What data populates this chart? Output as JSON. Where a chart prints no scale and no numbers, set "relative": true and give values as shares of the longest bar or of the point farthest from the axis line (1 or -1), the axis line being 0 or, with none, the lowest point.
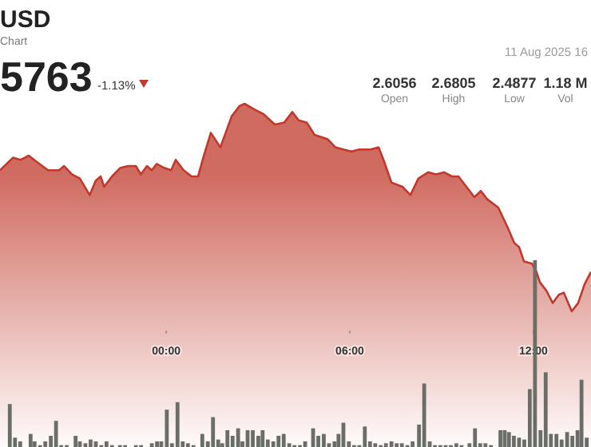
{
  "chart_data": [
    {
      "type": "area",
      "relative": true,
      "title": "USD",
      "subtitle": "Chart",
      "annotations": [
        "5763",
        "-1.13%",
        "11 Aug 2025 16",
        "2.6056",
        "Open",
        "2.6805",
        "High",
        "2.4877",
        "Low",
        "1.18 M",
        "Vol"
      ],
      "color": "#c0392b",
      "x": [
        -5.43,
        -5.01,
        -4.75,
        -4.49,
        -4.23,
        -3.86,
        -3.5,
        -3.34,
        -3.08,
        -2.82,
        -2.5,
        -2.3,
        -2.14,
        -2.03,
        -1.77,
        -1.51,
        -1.25,
        -0.99,
        -0.83,
        -0.63,
        -0.47,
        -0.31,
        -0.05,
        0.16,
        0.31,
        0.57,
        0.83,
        1.04,
        1.25,
        1.46,
        1.77,
        2.14,
        2.4,
        2.56,
        2.92,
        3.18,
        3.55,
        3.86,
        4.12,
        4.33,
        4.59,
        4.85,
        5.27,
        5.53,
        5.79,
        6.05,
        6.31,
        6.68,
        6.94,
        7.1,
        7.36,
        7.72,
        7.98,
        8.24,
        8.56,
        8.82,
        9.08,
        9.34,
        9.55,
        9.81,
        10.07,
        10.28,
        10.49,
        10.85,
        11.17,
        11.37,
        11.53,
        11.69,
        11.95,
        12.1,
        12.21,
        12.42,
        12.63,
        12.83,
        12.99,
        13.25,
        13.46,
        13.67,
        13.88
      ],
      "values": [
        0.68,
        0.74,
        0.73,
        0.75,
        0.72,
        0.68,
        0.68,
        0.7,
        0.66,
        0.64,
        0.56,
        0.63,
        0.65,
        0.6,
        0.65,
        0.69,
        0.7,
        0.7,
        0.66,
        0.7,
        0.68,
        0.71,
        0.69,
        0.68,
        0.73,
        0.68,
        0.65,
        0.65,
        0.76,
        0.86,
        0.79,
        0.94,
        0.99,
        1,
        0.97,
        0.95,
        0.9,
        0.91,
        0.96,
        0.92,
        0.91,
        0.85,
        0.83,
        0.79,
        0.78,
        0.77,
        0.78,
        0.78,
        0.79,
        0.73,
        0.62,
        0.6,
        0.56,
        0.64,
        0.67,
        0.66,
        0.67,
        0.65,
        0.65,
        0.6,
        0.55,
        0.58,
        0.54,
        0.5,
        0.4,
        0.33,
        0.31,
        0.24,
        0.23,
        0.19,
        0.14,
        0.1,
        0.04,
        0.08,
        0.09,
        0,
        0.04,
        0.13,
        0.19
      ],
      "xlim": [
        -5.43,
        13.88
      ],
      "xticks": [
        {
          "value": 0,
          "label": "00:00"
        },
        {
          "value": 6,
          "label": "06:00"
        },
        {
          "value": 12,
          "label": "12:00"
        }
      ]
    },
    {
      "type": "bar",
      "relative": true,
      "color": "#6b6e66",
      "xlim": [
        -5.43,
        13.88
      ],
      "x": [
        -5.11,
        -4.94,
        -4.77,
        -4.43,
        -4.3,
        -4.12,
        -3.95,
        -3.77,
        -3.6,
        -3.43,
        -3.25,
        -2.96,
        -2.82,
        -2.64,
        -2.47,
        -2.3,
        -2.12,
        -1.95,
        -1.77,
        -1.51,
        -1.34,
        -0.99,
        -0.82,
        -0.47,
        -0.3,
        -0.16,
        0.02,
        0.19,
        0.37,
        0.54,
        0.71,
        0.89,
        1.18,
        1.36,
        1.53,
        1.7,
        1.83,
        2,
        2.17,
        2.35,
        2.49,
        2.66,
        2.83,
        3.01,
        3.15,
        3.32,
        3.5,
        3.67,
        3.84,
        4.02,
        4.19,
        4.37,
        4.54,
        4.8,
        4.97,
        5.15,
        5.32,
        5.5,
        5.63,
        5.79,
        5.97,
        6.14,
        6.31,
        6.49,
        6.66,
        6.83,
        7.01,
        7.18,
        7.36,
        7.53,
        7.7,
        7.88,
        8.05,
        8.26,
        8.43,
        8.61,
        8.78,
        8.96,
        9.13,
        9.3,
        9.48,
        9.65,
        9.91,
        10.09,
        10.26,
        10.43,
        10.61,
        10.92,
        11.06,
        11.2,
        11.36,
        11.53,
        11.7,
        11.88,
        12.05,
        12.23,
        12.4,
        12.57,
        12.75,
        12.92,
        13.1,
        13.27,
        13.44,
        13.57,
        13.74
      ],
      "values": [
        0.23,
        0.05,
        0.03,
        0.07,
        0.03,
        0.01,
        0.03,
        0.06,
        0.14,
        0.01,
        0.01,
        0.06,
        0.03,
        0.02,
        0.04,
        0.03,
        0.01,
        0.03,
        0.01,
        0.01,
        0.01,
        0.01,
        0.01,
        0.02,
        0.03,
        0.03,
        0.2,
        0.02,
        0.24,
        0.03,
        0.02,
        0.01,
        0.07,
        0.03,
        0.16,
        0.04,
        0.02,
        0.09,
        0.06,
        0.1,
        0.03,
        0.09,
        0.09,
        0.06,
        0.09,
        0.04,
        0.03,
        0.06,
        0.07,
        0.02,
        0.01,
        0.01,
        0.03,
        0.1,
        0.06,
        0.07,
        0.02,
        0.03,
        0.07,
        0.13,
        0.03,
        0.01,
        0.01,
        0.11,
        0.03,
        0.02,
        0.01,
        0.02,
        0.03,
        0.02,
        0.02,
        0.01,
        0.03,
        0.12,
        0.34,
        0.03,
        0.01,
        0.01,
        0.01,
        0.01,
        0.02,
        0.01,
        0.02,
        0.1,
        0.02,
        0.02,
        0.01,
        0.09,
        0.09,
        0.08,
        0.06,
        0.05,
        0.04,
        0.31,
        1,
        0.09,
        0.4,
        0.07,
        0.07,
        0.04,
        0.08,
        0.06,
        0.09,
        0.36,
        0.05
      ]
    }
  ]
}
